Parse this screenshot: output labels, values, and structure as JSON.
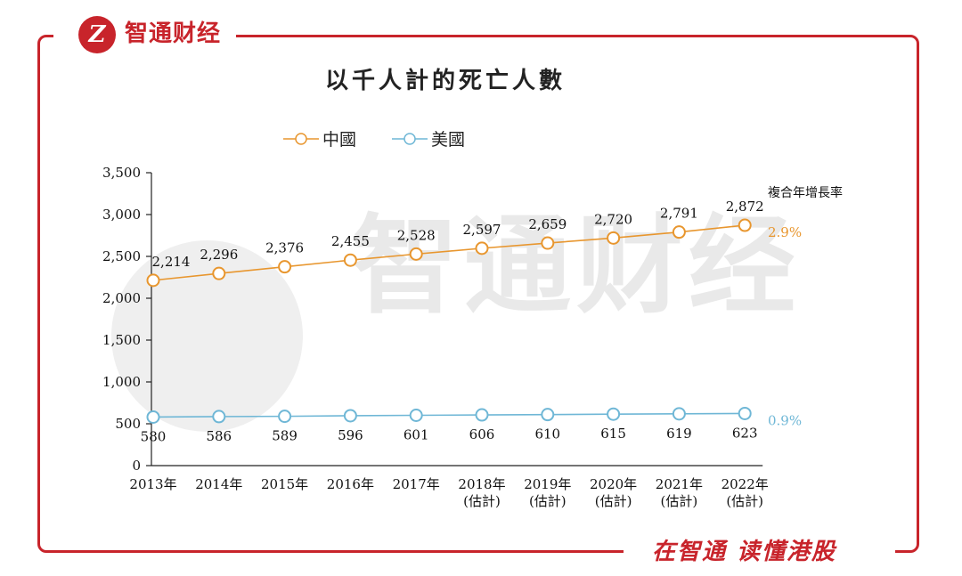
{
  "brand": {
    "name": "智通财经",
    "logo_letter": "Z",
    "slogan": "在智通 读懂港股",
    "watermark": "智通财经"
  },
  "colors": {
    "china": "#e8962e",
    "usa": "#6fb7d6",
    "brand_red": "#c8242b"
  },
  "chart_data": {
    "type": "line",
    "title": "以千人計的死亡人數",
    "categories": [
      "2013年",
      "2014年",
      "2015年",
      "2016年",
      "2017年",
      "2018年",
      "2019年",
      "2020年",
      "2021年",
      "2022年"
    ],
    "category_notes": [
      "",
      "",
      "",
      "",
      "",
      "(估計)",
      "(估計)",
      "(估計)",
      "(估計)",
      "(估計)"
    ],
    "series": [
      {
        "name": "中國",
        "values": [
          2214,
          2296,
          2376,
          2455,
          2528,
          2597,
          2659,
          2720,
          2791,
          2872
        ],
        "labels": [
          "2,214",
          "2,296",
          "2,376",
          "2,455",
          "2,528",
          "2,597",
          "2,659",
          "2,720",
          "2,791",
          "2,872"
        ],
        "cagr": "2.9%"
      },
      {
        "name": "美國",
        "values": [
          580,
          586,
          589,
          596,
          601,
          606,
          610,
          615,
          619,
          623
        ],
        "labels": [
          "580",
          "586",
          "589",
          "596",
          "601",
          "606",
          "610",
          "615",
          "619",
          "623"
        ],
        "cagr": "0.9%"
      }
    ],
    "cagr_header": "複合年增長率",
    "ylim": [
      0,
      3500
    ],
    "yticks": [
      0,
      500,
      1000,
      1500,
      2000,
      2500,
      3000,
      3500
    ],
    "ytick_labels": [
      "0",
      "500",
      "1,000",
      "1,500",
      "2,000",
      "2,500",
      "3,000",
      "3,500"
    ],
    "legend_position": "top-left"
  }
}
